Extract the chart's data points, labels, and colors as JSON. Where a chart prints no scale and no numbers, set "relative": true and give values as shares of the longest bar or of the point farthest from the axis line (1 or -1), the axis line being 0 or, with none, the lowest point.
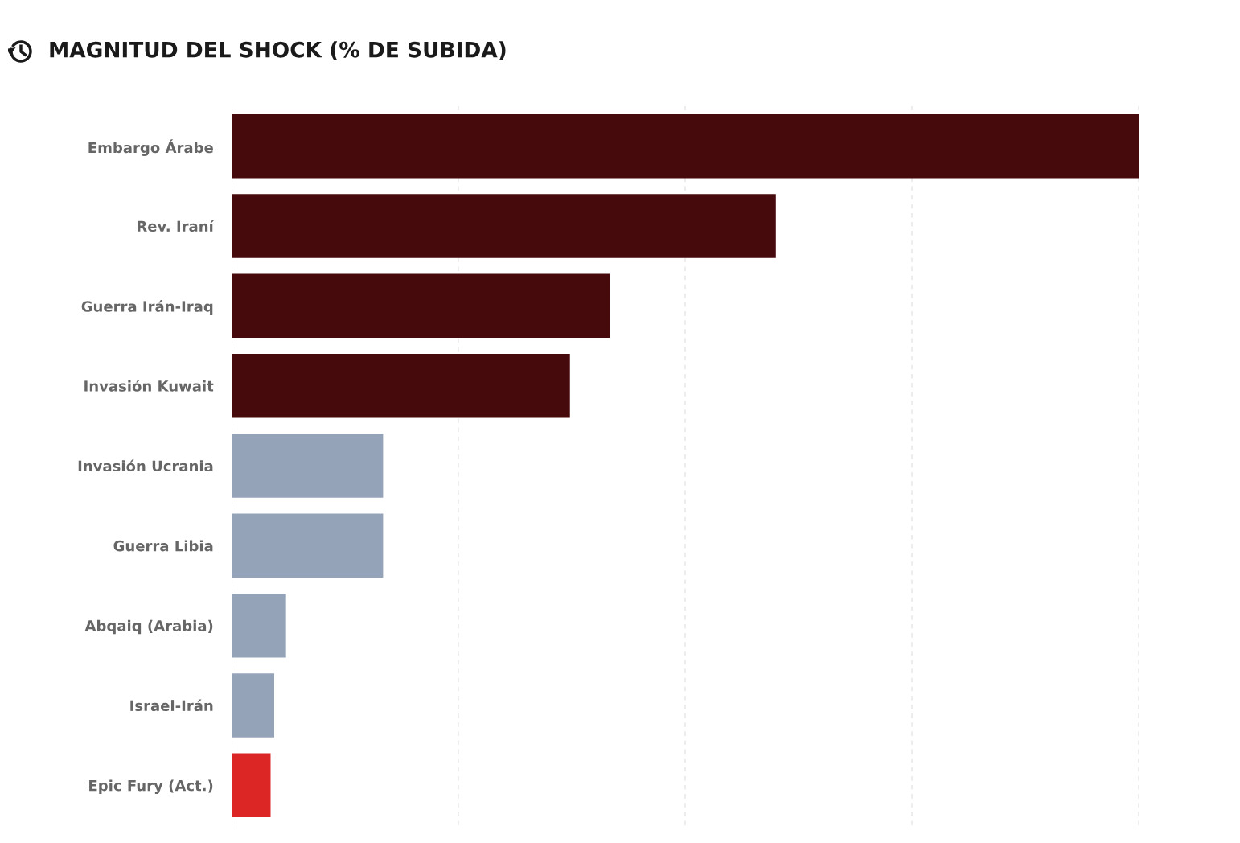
{
  "chart_data": {
    "type": "bar",
    "orientation": "horizontal",
    "relative": true,
    "title": "MAGNITUD DEL SHOCK (% DE SUBIDA)",
    "categories": [
      "Embargo Árabe",
      "Rev. Iraní",
      "Guerra Irán-Iraq",
      "Invasión Kuwait",
      "Invasión Ucrania",
      "Guerra Libia",
      "Abqaiq (Arabia)",
      "Israel-Irán",
      "Epic Fury (Act.)"
    ],
    "values": [
      1,
      0.6,
      0.417,
      0.373,
      0.167,
      0.167,
      0.06,
      0.047,
      0.043
    ],
    "colors": [
      "#470a0c",
      "#470a0c",
      "#470a0c",
      "#470a0c",
      "#94a3b8",
      "#94a3b8",
      "#94a3b8",
      "#94a3b8",
      "#dc2626"
    ],
    "grid": "x",
    "legend": false
  }
}
